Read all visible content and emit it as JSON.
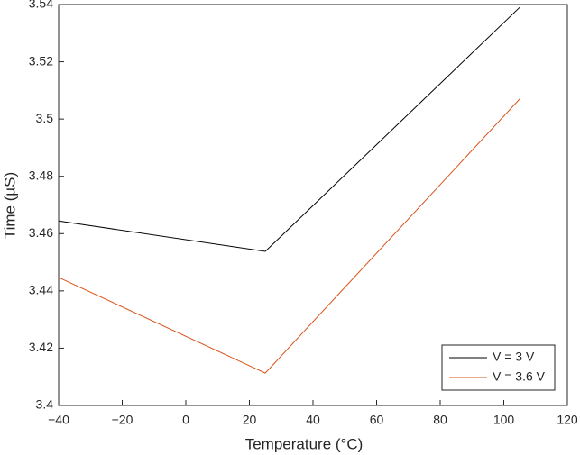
{
  "chart_data": {
    "type": "line",
    "x_label": "Temperature (°C)",
    "y_label": "Time (µS)",
    "x": [
      -40,
      25,
      105
    ],
    "series": [
      {
        "name": "V = 3 V",
        "color": "#000000",
        "values": [
          3.4644,
          3.4538,
          3.539
        ]
      },
      {
        "name": "V = 3.6 V",
        "color": "#d95319",
        "values": [
          3.4447,
          3.4113,
          3.507
        ]
      }
    ],
    "xlim": [
      -40,
      120
    ],
    "xticks": [
      {
        "value": -40,
        "label": "−40"
      },
      {
        "value": -20,
        "label": "−20"
      },
      0,
      20,
      40,
      60,
      80,
      100,
      120
    ],
    "ylim": [
      3.4,
      3.54
    ],
    "yticks": [
      3.4,
      3.42,
      3.44,
      3.46,
      3.48,
      3.5,
      3.52,
      3.54
    ],
    "grid": false,
    "legend": "lower right"
  }
}
